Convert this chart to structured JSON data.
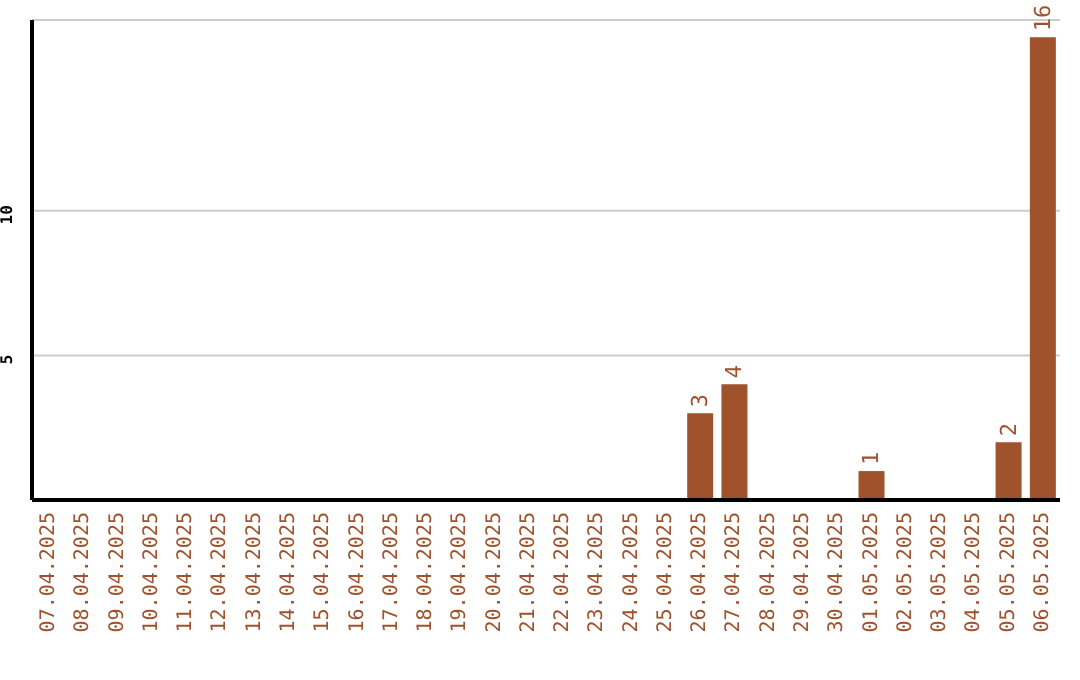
{
  "chart_data": {
    "type": "bar",
    "categories": [
      "07.04.2025",
      "08.04.2025",
      "09.04.2025",
      "10.04.2025",
      "11.04.2025",
      "12.04.2025",
      "13.04.2025",
      "14.04.2025",
      "15.04.2025",
      "16.04.2025",
      "17.04.2025",
      "18.04.2025",
      "19.04.2025",
      "20.04.2025",
      "21.04.2025",
      "22.04.2025",
      "23.04.2025",
      "24.04.2025",
      "25.04.2025",
      "26.04.2025",
      "27.04.2025",
      "28.04.2025",
      "29.04.2025",
      "30.04.2025",
      "01.05.2025",
      "02.05.2025",
      "03.05.2025",
      "04.05.2025",
      "05.05.2025",
      "06.05.2025"
    ],
    "values": [
      0,
      0,
      0,
      0,
      0,
      0,
      0,
      0,
      0,
      0,
      0,
      0,
      0,
      0,
      0,
      0,
      0,
      0,
      0,
      3,
      4,
      0,
      0,
      0,
      1,
      0,
      0,
      0,
      2,
      16
    ],
    "value_labels": [
      null,
      null,
      null,
      null,
      null,
      null,
      null,
      null,
      null,
      null,
      null,
      null,
      null,
      null,
      null,
      null,
      null,
      null,
      null,
      "3",
      "4",
      null,
      null,
      null,
      "1",
      null,
      null,
      null,
      "2",
      "16"
    ],
    "color": "#a0522d",
    "ylim": [
      0,
      16.6
    ],
    "yticks": [
      5,
      10
    ],
    "grid": "y"
  }
}
